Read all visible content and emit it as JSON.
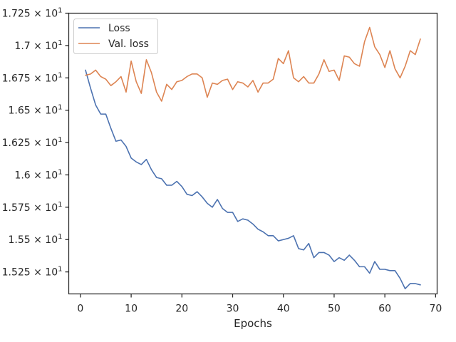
{
  "chart_data": {
    "type": "line",
    "title": "",
    "xlabel": "Epochs",
    "ylabel": "",
    "xlim": [
      -2.3,
      70.3
    ],
    "ylim": [
      15.08,
      17.25
    ],
    "xticks": [
      {
        "value": 0,
        "label": "0"
      },
      {
        "value": 10,
        "label": "10"
      },
      {
        "value": 20,
        "label": "20"
      },
      {
        "value": 30,
        "label": "30"
      },
      {
        "value": 40,
        "label": "40"
      },
      {
        "value": 50,
        "label": "50"
      },
      {
        "value": 60,
        "label": "60"
      },
      {
        "value": 70,
        "label": "70"
      }
    ],
    "yticks": [
      {
        "value": 15.25,
        "mantissa": "1.525 × 10",
        "exp": "1"
      },
      {
        "value": 15.5,
        "mantissa": "1.55 × 10",
        "exp": "1"
      },
      {
        "value": 15.75,
        "mantissa": "1.575 × 10",
        "exp": "1"
      },
      {
        "value": 16.0,
        "mantissa": "1.6 × 10",
        "exp": "1"
      },
      {
        "value": 16.25,
        "mantissa": "1.625 × 10",
        "exp": "1"
      },
      {
        "value": 16.5,
        "mantissa": "1.65 × 10",
        "exp": "1"
      },
      {
        "value": 16.75,
        "mantissa": "1.675 × 10",
        "exp": "1"
      },
      {
        "value": 17.0,
        "mantissa": "1.7 × 10",
        "exp": "1"
      },
      {
        "value": 17.25,
        "mantissa": "1.725 × 10",
        "exp": "1"
      }
    ],
    "grid": false,
    "legend_position": "top-left",
    "x": [
      1,
      2,
      3,
      4,
      5,
      6,
      7,
      8,
      9,
      10,
      11,
      12,
      13,
      14,
      15,
      16,
      17,
      18,
      19,
      20,
      21,
      22,
      23,
      24,
      25,
      26,
      27,
      28,
      29,
      30,
      31,
      32,
      33,
      34,
      35,
      36,
      37,
      38,
      39,
      40,
      41,
      42,
      43,
      44,
      45,
      46,
      47,
      48,
      49,
      50,
      51,
      52,
      53,
      54,
      55,
      56,
      57,
      58,
      59,
      60,
      61,
      62,
      63,
      64,
      65,
      66,
      67
    ],
    "series": [
      {
        "name": "Loss",
        "color": "#4c72b0",
        "values": [
          16.81,
          16.67,
          16.54,
          16.47,
          16.47,
          16.36,
          16.26,
          16.27,
          16.22,
          16.13,
          16.1,
          16.08,
          16.12,
          16.04,
          15.98,
          15.97,
          15.92,
          15.92,
          15.95,
          15.91,
          15.85,
          15.84,
          15.87,
          15.83,
          15.78,
          15.75,
          15.81,
          15.74,
          15.71,
          15.71,
          15.64,
          15.66,
          15.65,
          15.62,
          15.58,
          15.56,
          15.53,
          15.53,
          15.49,
          15.5,
          15.51,
          15.53,
          15.43,
          15.42,
          15.47,
          15.36,
          15.4,
          15.4,
          15.38,
          15.33,
          15.36,
          15.34,
          15.38,
          15.34,
          15.29,
          15.29,
          15.24,
          15.33,
          15.27,
          15.27,
          15.26,
          15.26,
          15.2,
          15.12,
          15.16,
          15.16,
          15.15
        ]
      },
      {
        "name": "Val. loss",
        "color": "#dd8452",
        "values": [
          16.77,
          16.78,
          16.81,
          16.76,
          16.74,
          16.69,
          16.72,
          16.76,
          16.64,
          16.88,
          16.72,
          16.63,
          16.89,
          16.79,
          16.64,
          16.57,
          16.7,
          16.66,
          16.72,
          16.73,
          16.76,
          16.78,
          16.78,
          16.75,
          16.6,
          16.71,
          16.7,
          16.73,
          16.74,
          16.66,
          16.72,
          16.71,
          16.68,
          16.73,
          16.64,
          16.71,
          16.71,
          16.74,
          16.9,
          16.86,
          16.96,
          16.75,
          16.72,
          16.76,
          16.71,
          16.71,
          16.78,
          16.89,
          16.8,
          16.81,
          16.73,
          16.92,
          16.91,
          16.86,
          16.84,
          17.03,
          17.14,
          16.99,
          16.93,
          16.83,
          16.96,
          16.82,
          16.75,
          16.84,
          16.96,
          16.93,
          17.05
        ]
      }
    ]
  }
}
